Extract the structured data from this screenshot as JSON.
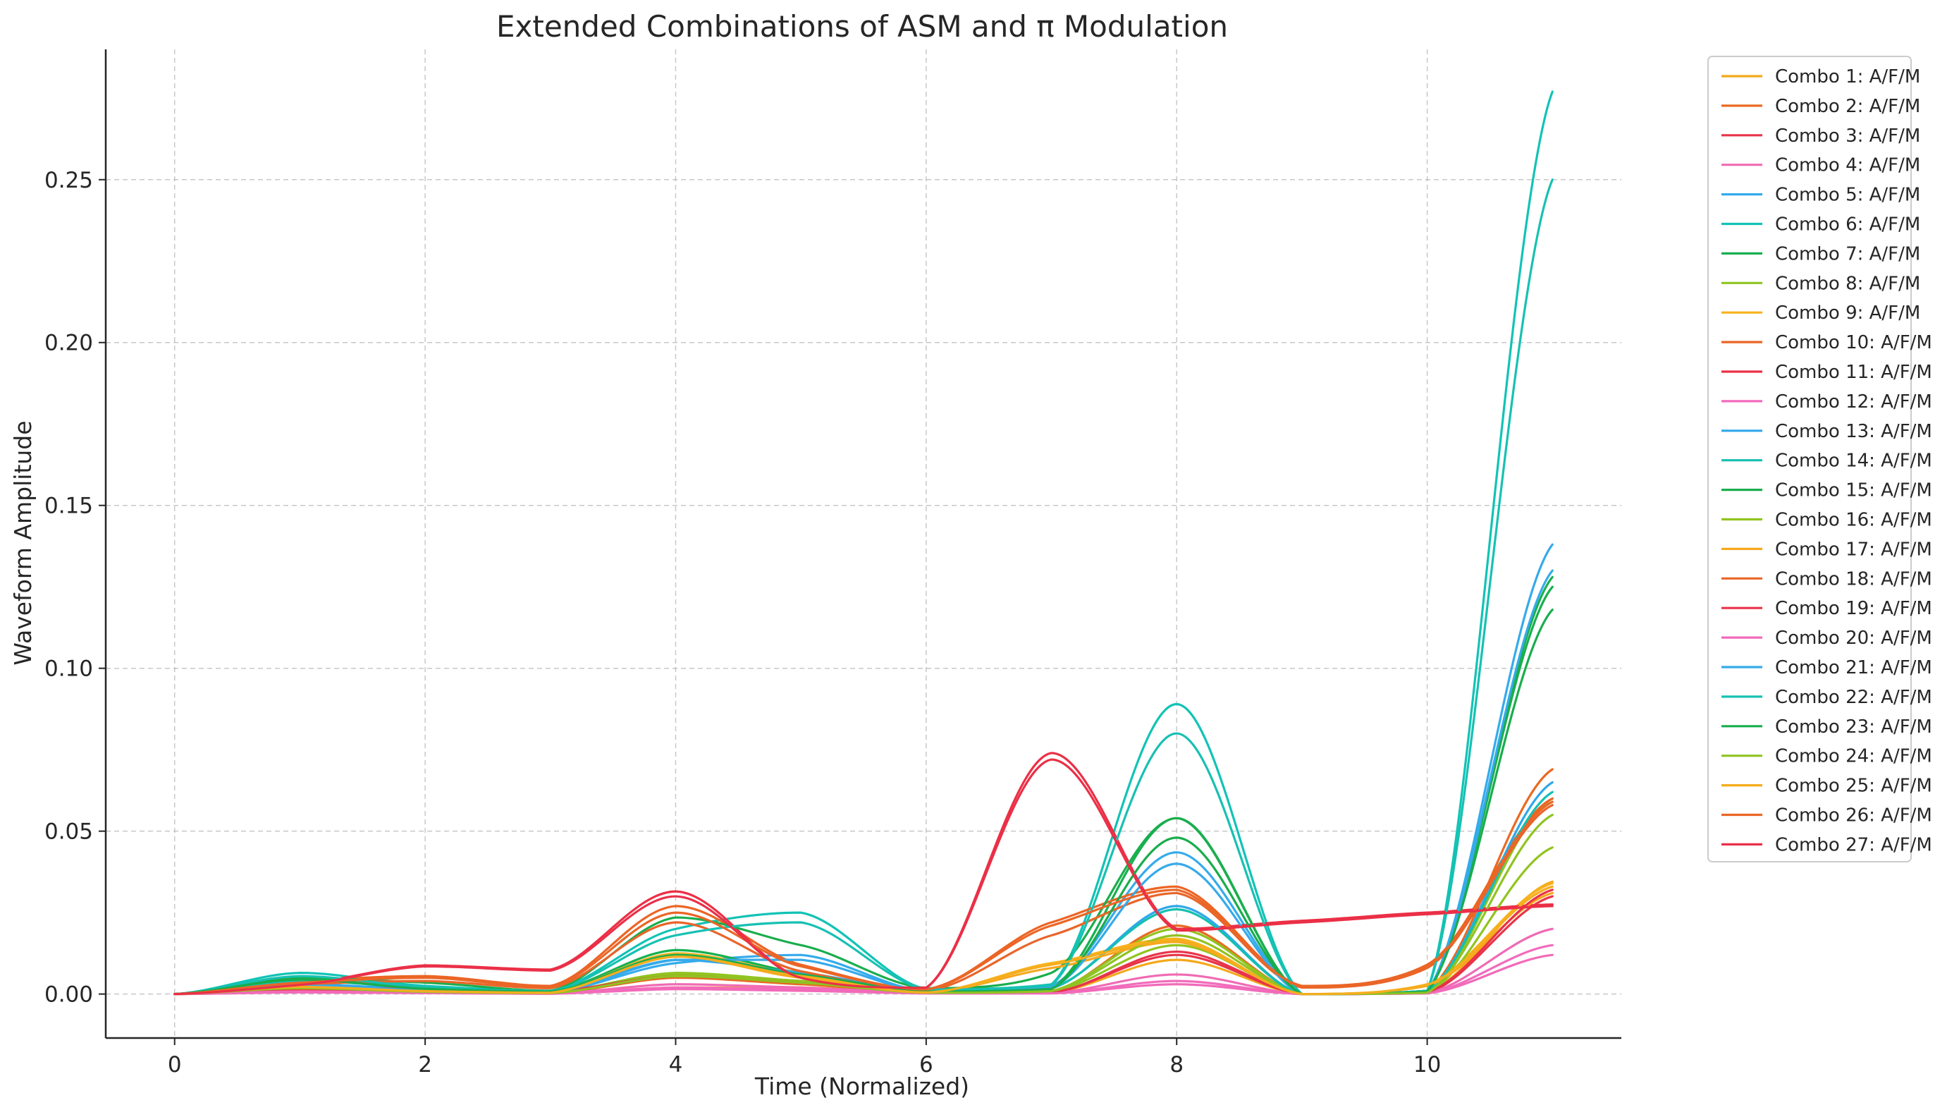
{
  "chart_data": {
    "type": "line",
    "title": "Extended Combinations of ASM and π Modulation",
    "xlabel": "Time (Normalized)",
    "ylabel": "Waveform Amplitude",
    "xlim": [
      -0.55,
      11.55
    ],
    "ylim": [
      -0.0135,
      0.29
    ],
    "x_ticks": [
      0,
      2,
      4,
      6,
      8,
      10
    ],
    "x_tick_labels": [
      "0",
      "2",
      "4",
      "6",
      "8",
      "10"
    ],
    "y_ticks": [
      0.0,
      0.05,
      0.1,
      0.15,
      0.2,
      0.25
    ],
    "y_tick_labels": [
      "0.00",
      "0.05",
      "0.10",
      "0.15",
      "0.20",
      "0.25"
    ],
    "grid": true,
    "legend_position": "outside-right-top",
    "series": [
      {
        "name": "Combo 1: A/F/M",
        "color": "#f4a81b",
        "x": [
          0,
          1,
          2,
          3,
          4,
          5,
          6,
          7,
          8,
          9,
          10,
          11
        ],
        "y": [
          0,
          0.001,
          0.0005,
          0.0002,
          0.002,
          0.002,
          0.0003,
          0.0004,
          0.0105,
          0,
          0.0005,
          0.0345
        ]
      },
      {
        "name": "Combo 2: A/F/M",
        "color": "#ea6a21",
        "x": [
          0,
          1,
          2,
          3,
          4,
          5,
          6,
          7,
          8,
          9,
          10,
          11
        ],
        "y": [
          0,
          0.0015,
          0.001,
          0.0003,
          0.005,
          0.003,
          0.0003,
          0.0008,
          0.021,
          0,
          0.001,
          0.069
        ]
      },
      {
        "name": "Combo 3: A/F/M",
        "color": "#e8344a",
        "x": [
          0,
          1,
          2,
          3,
          4,
          5,
          6,
          7,
          8,
          9,
          10,
          11
        ],
        "y": [
          0,
          0.001,
          0.0005,
          0.0003,
          0.0055,
          0.004,
          0.0004,
          0.0003,
          0.013,
          0,
          0.0003,
          0.03
        ]
      },
      {
        "name": "Combo 4: A/F/M",
        "color": "#f06bb4",
        "x": [
          0,
          1,
          2,
          3,
          4,
          5,
          6,
          7,
          8,
          9,
          10,
          11
        ],
        "y": [
          0,
          0.0008,
          0.0004,
          0.0002,
          0.003,
          0.002,
          0.0003,
          0.0003,
          0.006,
          0,
          0.0003,
          0.02
        ]
      },
      {
        "name": "Combo 5: A/F/M",
        "color": "#34abec",
        "x": [
          0,
          1,
          2,
          3,
          4,
          5,
          6,
          7,
          8,
          9,
          10,
          11
        ],
        "y": [
          0,
          0.003,
          0.0012,
          0.0005,
          0.0095,
          0.012,
          0.0008,
          0.0025,
          0.0435,
          0,
          0.0008,
          0.138
        ]
      },
      {
        "name": "Combo 6: A/F/M",
        "color": "#11c3b6",
        "x": [
          0,
          1,
          2,
          3,
          4,
          5,
          6,
          7,
          8,
          9,
          10,
          11
        ],
        "y": [
          0,
          0.0065,
          0.0025,
          0.001,
          0.02,
          0.025,
          0.0015,
          0.003,
          0.089,
          0,
          0.001,
          0.277
        ]
      },
      {
        "name": "Combo 7: A/F/M",
        "color": "#17b04f",
        "x": [
          0,
          1,
          2,
          3,
          4,
          5,
          6,
          7,
          8,
          9,
          10,
          11
        ],
        "y": [
          0,
          0.005,
          0.0018,
          0.0008,
          0.0135,
          0.0065,
          0.0008,
          0.0018,
          0.054,
          0,
          0.0008,
          0.128
        ]
      },
      {
        "name": "Combo 8: A/F/M",
        "color": "#8fc41f",
        "x": [
          0,
          1,
          2,
          3,
          4,
          5,
          6,
          7,
          8,
          9,
          10,
          11
        ],
        "y": [
          0,
          0.002,
          0.0008,
          0.0004,
          0.0065,
          0.004,
          0.0005,
          0.001,
          0.02,
          0,
          0.0004,
          0.06
        ]
      },
      {
        "name": "Combo 9: A/F/M",
        "color": "#f7b21c",
        "x": [
          0,
          1,
          2,
          3,
          4,
          5,
          6,
          7,
          8,
          9,
          10,
          11
        ],
        "y": [
          0,
          0.0025,
          0.001,
          0.0005,
          0.0125,
          0.006,
          0.0005,
          0.0095,
          0.017,
          0,
          0.003,
          0.034
        ]
      },
      {
        "name": "Combo 10: A/F/M",
        "color": "#ec6424",
        "x": [
          0,
          1,
          2,
          3,
          4,
          5,
          6,
          7,
          8,
          9,
          10,
          11
        ],
        "y": [
          0,
          0.004,
          0.0055,
          0.0025,
          0.027,
          0.009,
          0.0015,
          0.022,
          0.033,
          0.0025,
          0.009,
          0.06
        ]
      },
      {
        "name": "Combo 11: A/F/M",
        "color": "#ec2f45",
        "x": [
          0,
          1,
          2,
          3,
          4,
          5,
          6,
          7,
          8,
          9,
          10,
          11
        ],
        "y": [
          0,
          0.003,
          0.0088,
          0.0075,
          0.0315,
          0.005,
          0.002,
          0.074,
          0.02,
          0.0225,
          0.025,
          0.0275
        ]
      },
      {
        "name": "Combo 12: A/F/M",
        "color": "#f26bbd",
        "x": [
          0,
          1,
          2,
          3,
          4,
          5,
          6,
          7,
          8,
          9,
          10,
          11
        ],
        "y": [
          0,
          0.0006,
          0.0003,
          0.0001,
          0.002,
          0.0015,
          0.0002,
          0.0002,
          0.004,
          0,
          0.0002,
          0.015
        ]
      },
      {
        "name": "Combo 13: A/F/M",
        "color": "#2fa8eb",
        "x": [
          0,
          1,
          2,
          3,
          4,
          5,
          6,
          7,
          8,
          9,
          10,
          11
        ],
        "y": [
          0,
          0.003,
          0.0015,
          0.0006,
          0.0105,
          0.0065,
          0.0008,
          0.0018,
          0.027,
          0,
          0.0006,
          0.065
        ]
      },
      {
        "name": "Combo 14: A/F/M",
        "color": "#14c0b0",
        "x": [
          0,
          1,
          2,
          3,
          4,
          5,
          6,
          7,
          8,
          9,
          10,
          11
        ],
        "y": [
          0,
          0.004,
          0.002,
          0.0008,
          0.012,
          0.006,
          0.001,
          0.002,
          0.026,
          0,
          0.0008,
          0.062
        ]
      },
      {
        "name": "Combo 15: A/F/M",
        "color": "#1aae4d",
        "x": [
          0,
          1,
          2,
          3,
          4,
          5,
          6,
          7,
          8,
          9,
          10,
          11
        ],
        "y": [
          0,
          0.005,
          0.0035,
          0.001,
          0.0235,
          0.015,
          0.0018,
          0.0065,
          0.054,
          0,
          0.001,
          0.125
        ]
      },
      {
        "name": "Combo 16: A/F/M",
        "color": "#92c420",
        "x": [
          0,
          1,
          2,
          3,
          4,
          5,
          6,
          7,
          8,
          9,
          10,
          11
        ],
        "y": [
          0,
          0.002,
          0.001,
          0.0004,
          0.006,
          0.004,
          0.0005,
          0.0008,
          0.015,
          0,
          0.0004,
          0.045
        ]
      },
      {
        "name": "Combo 17: A/F/M",
        "color": "#f6a81d",
        "x": [
          0,
          1,
          2,
          3,
          4,
          5,
          6,
          7,
          8,
          9,
          10,
          11
        ],
        "y": [
          0,
          0.002,
          0.001,
          0.0004,
          0.0115,
          0.005,
          0.0005,
          0.008,
          0.016,
          0,
          0.0025,
          0.031
        ]
      },
      {
        "name": "Combo 18: A/F/M",
        "color": "#e9652a",
        "x": [
          0,
          1,
          2,
          3,
          4,
          5,
          6,
          7,
          8,
          9,
          10,
          11
        ],
        "y": [
          0,
          0.003,
          0.004,
          0.0018,
          0.022,
          0.007,
          0.001,
          0.018,
          0.031,
          0.002,
          0.008,
          0.058
        ]
      },
      {
        "name": "Combo 19: A/F/M",
        "color": "#e83349",
        "x": [
          0,
          1,
          2,
          3,
          4,
          5,
          6,
          7,
          8,
          9,
          10,
          11
        ],
        "y": [
          0,
          0.002,
          0.0015,
          0.0008,
          0.0055,
          0.0035,
          0.0005,
          0.0005,
          0.012,
          0,
          0.0005,
          0.032
        ]
      },
      {
        "name": "Combo 20: A/F/M",
        "color": "#f26ab9",
        "x": [
          0,
          1,
          2,
          3,
          4,
          5,
          6,
          7,
          8,
          9,
          10,
          11
        ],
        "y": [
          0,
          0.0005,
          0.0003,
          0.0001,
          0.0015,
          0.001,
          0.0002,
          0.0002,
          0.003,
          0,
          0.0002,
          0.012
        ]
      },
      {
        "name": "Combo 21: A/F/M",
        "color": "#36aaea",
        "x": [
          0,
          1,
          2,
          3,
          4,
          5,
          6,
          7,
          8,
          9,
          10,
          11
        ],
        "y": [
          0,
          0.0025,
          0.0012,
          0.0005,
          0.0105,
          0.0105,
          0.0008,
          0.002,
          0.04,
          0,
          0.0008,
          0.13
        ]
      },
      {
        "name": "Combo 22: A/F/M",
        "color": "#16c1b2",
        "x": [
          0,
          1,
          2,
          3,
          4,
          5,
          6,
          7,
          8,
          9,
          10,
          11
        ],
        "y": [
          0,
          0.0055,
          0.0022,
          0.0009,
          0.018,
          0.022,
          0.0014,
          0.0028,
          0.08,
          0,
          0.001,
          0.25
        ]
      },
      {
        "name": "Combo 23: A/F/M",
        "color": "#19ad4c",
        "x": [
          0,
          1,
          2,
          3,
          4,
          5,
          6,
          7,
          8,
          9,
          10,
          11
        ],
        "y": [
          0,
          0.0045,
          0.0016,
          0.0007,
          0.012,
          0.006,
          0.0008,
          0.0016,
          0.048,
          0,
          0.0008,
          0.118
        ]
      },
      {
        "name": "Combo 24: A/F/M",
        "color": "#90c322",
        "x": [
          0,
          1,
          2,
          3,
          4,
          5,
          6,
          7,
          8,
          9,
          10,
          11
        ],
        "y": [
          0,
          0.0018,
          0.0007,
          0.0003,
          0.0055,
          0.0035,
          0.0004,
          0.0009,
          0.018,
          0,
          0.0004,
          0.055
        ]
      },
      {
        "name": "Combo 25: A/F/M",
        "color": "#f5ad1e",
        "x": [
          0,
          1,
          2,
          3,
          4,
          5,
          6,
          7,
          8,
          9,
          10,
          11
        ],
        "y": [
          0,
          0.0022,
          0.0009,
          0.0004,
          0.0115,
          0.0055,
          0.0005,
          0.009,
          0.0165,
          0,
          0.0028,
          0.033
        ]
      },
      {
        "name": "Combo 26: A/F/M",
        "color": "#eb6626",
        "x": [
          0,
          1,
          2,
          3,
          4,
          5,
          6,
          7,
          8,
          9,
          10,
          11
        ],
        "y": [
          0,
          0.0035,
          0.005,
          0.0022,
          0.025,
          0.0085,
          0.0014,
          0.021,
          0.032,
          0.0023,
          0.0085,
          0.059
        ]
      },
      {
        "name": "Combo 27: A/F/M",
        "color": "#ea3048",
        "x": [
          0,
          1,
          2,
          3,
          4,
          5,
          6,
          7,
          8,
          9,
          10,
          11
        ],
        "y": [
          0,
          0.0028,
          0.0085,
          0.0072,
          0.03,
          0.005,
          0.0019,
          0.072,
          0.0195,
          0.022,
          0.0245,
          0.027
        ]
      }
    ]
  }
}
